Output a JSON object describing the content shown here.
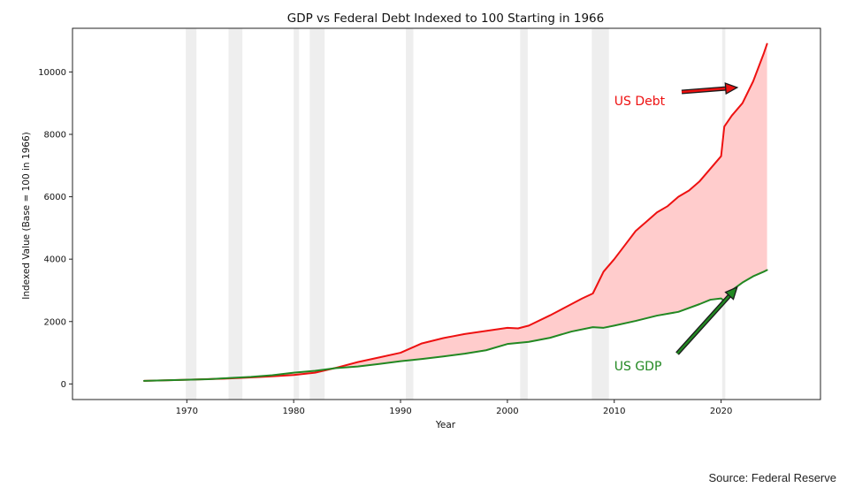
{
  "chart_data": {
    "type": "area",
    "title": "GDP vs Federal Debt Indexed to 100 Starting in 1966",
    "xlabel": "Year",
    "ylabel": "Indexed Value (Base = 100 in 1966)",
    "xlim": [
      1959.3,
      2029.3
    ],
    "ylim": [
      -500,
      11400
    ],
    "x_ticks": [
      1970,
      1980,
      1990,
      2000,
      2010,
      2020
    ],
    "y_ticks": [
      0,
      2000,
      4000,
      6000,
      8000,
      10000
    ],
    "x_tick_labels": [
      "1970",
      "1980",
      "1990",
      "2000",
      "2010",
      "2020"
    ],
    "y_tick_labels": [
      "0",
      "2000",
      "4000",
      "6000",
      "8000",
      "10000"
    ],
    "grid": false,
    "fill_between": {
      "color": "#ffcccc",
      "between": [
        "US Debt",
        "US GDP"
      ]
    },
    "recession_bands": [
      [
        1969.9,
        1970.9
      ],
      [
        1973.9,
        1975.2
      ],
      [
        1980.0,
        1980.5
      ],
      [
        1981.5,
        1982.9
      ],
      [
        1990.5,
        1991.2
      ],
      [
        2001.2,
        2001.9
      ],
      [
        2007.9,
        2009.5
      ],
      [
        2020.1,
        2020.4
      ]
    ],
    "series": [
      {
        "color": "#ee1111",
        "x": [
          1966,
          1968,
          1970,
          1972,
          1974,
          1976,
          1978,
          1980,
          1982,
          1984,
          1986,
          1988,
          1990,
          1992,
          1994,
          1996,
          1998,
          2000,
          2001,
          2002,
          2004,
          2006,
          2007,
          2008,
          2009,
          2010,
          2011,
          2012,
          2013,
          2014,
          2015,
          2016,
          2017,
          2018,
          2019,
          2020,
          2020.3,
          2021,
          2022,
          2023,
          2024,
          2024.3
        ],
        "values": [
          100,
          115,
          135,
          155,
          175,
          210,
          245,
          285,
          360,
          520,
          700,
          850,
          1000,
          1300,
          1470,
          1600,
          1700,
          1800,
          1780,
          1870,
          2200,
          2560,
          2740,
          2900,
          3600,
          4000,
          4450,
          4900,
          5200,
          5500,
          5700,
          6000,
          6200,
          6500,
          6900,
          7300,
          8250,
          8600,
          9000,
          9700,
          10600,
          10900
        ]
      },
      {
        "color": "#228822",
        "x": [
          1966,
          1968,
          1970,
          1972,
          1974,
          1976,
          1978,
          1980,
          1982,
          1984,
          1986,
          1988,
          1990,
          1992,
          1994,
          1996,
          1998,
          2000,
          2002,
          2004,
          2006,
          2008,
          2009,
          2010,
          2012,
          2014,
          2016,
          2018,
          2019,
          2020,
          2020.3,
          2021,
          2022,
          2023,
          2024,
          2024.3
        ],
        "values": [
          100,
          115,
          135,
          150,
          190,
          225,
          280,
          360,
          420,
          510,
          560,
          640,
          730,
          800,
          880,
          970,
          1080,
          1280,
          1350,
          1480,
          1680,
          1820,
          1800,
          1870,
          2020,
          2190,
          2310,
          2560,
          2700,
          2740,
          2660,
          3000,
          3250,
          3450,
          3600,
          3650
        ]
      }
    ],
    "annotations": [
      {
        "text": "US Debt",
        "color": "#ee1111",
        "text_xy": [
          2010.0,
          9100
        ],
        "arrow_to": [
          2021.5,
          9500
        ]
      },
      {
        "text": "US GDP",
        "color": "#228822",
        "text_xy": [
          2010.0,
          600
        ],
        "arrow_to": [
          2021.5,
          3100
        ]
      }
    ]
  },
  "source_note": "Source: Federal Reserve"
}
